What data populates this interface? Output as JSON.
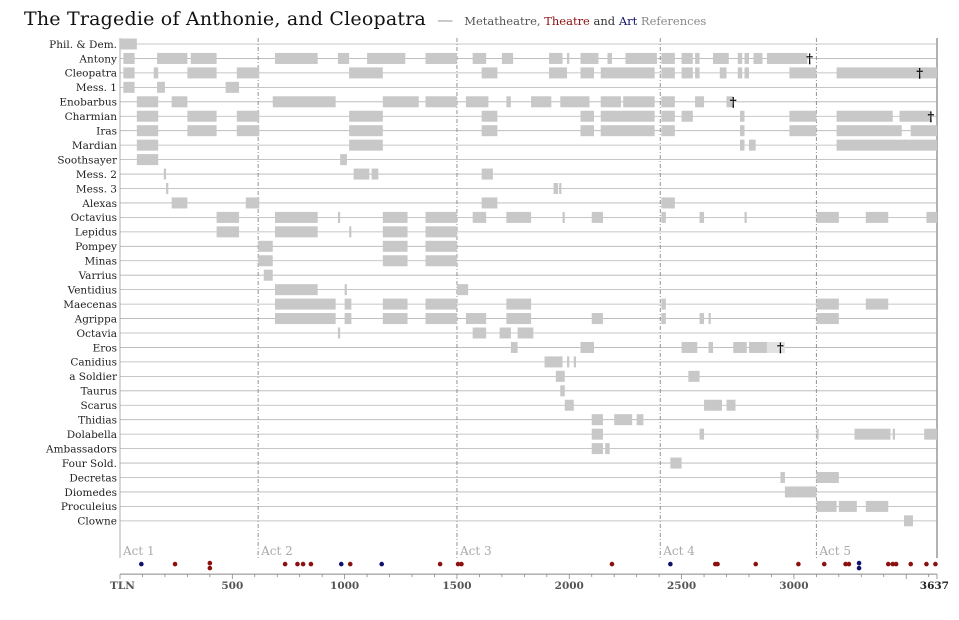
{
  "header": {
    "title": "The Tragedie of Anthonie, and Cleopatra",
    "dash": "—",
    "subtitle_metatheatre": "Metatheatre,",
    "subtitle_theatre": "Theatre",
    "subtitle_and": "and",
    "subtitle_art": "Art",
    "subtitle_references": "References"
  },
  "colors": {
    "bar": "#c8c8c8",
    "bar_light": "#e2e2e2",
    "row_line": "#b4b4b4",
    "act_line": "#888888",
    "theatre": "#8b1010",
    "art": "#10106e"
  },
  "chart_data": {
    "type": "timeline",
    "xlim": [
      0,
      3637
    ],
    "x_unit": "TLN",
    "x_ticks": [
      500,
      1000,
      1500,
      2000,
      2500,
      3000
    ],
    "x_start_label": "TLN",
    "x_end_label": "3637",
    "acts": [
      {
        "label": "Act 1",
        "start": 0
      },
      {
        "label": "Act 2",
        "start": 615
      },
      {
        "label": "Act 3",
        "start": 1500
      },
      {
        "label": "Act 4",
        "start": 2405
      },
      {
        "label": "Act 5",
        "start": 3100
      }
    ],
    "characters": [
      {
        "name": "Phil. & Dem.",
        "spans": [
          [
            0,
            75
          ]
        ]
      },
      {
        "name": "Antony",
        "spans": [
          [
            15,
            65
          ],
          [
            165,
            300
          ],
          [
            315,
            430
          ],
          [
            690,
            880
          ],
          [
            970,
            1020
          ],
          [
            1100,
            1270
          ],
          [
            1360,
            1500
          ],
          [
            1570,
            1630
          ],
          [
            1700,
            1750
          ],
          [
            1910,
            1970
          ],
          [
            1990,
            2000
          ],
          [
            2050,
            2130
          ],
          [
            2170,
            2190
          ],
          [
            2250,
            2390
          ],
          [
            2410,
            2470
          ],
          [
            2500,
            2550
          ],
          [
            2560,
            2580
          ],
          [
            2640,
            2710
          ],
          [
            2750,
            2770
          ],
          [
            2780,
            2800
          ],
          [
            2820,
            2860
          ],
          [
            2880,
            3060
          ]
        ],
        "death": 3070
      },
      {
        "name": "Cleopatra",
        "spans": [
          [
            15,
            65
          ],
          [
            150,
            170
          ],
          [
            300,
            430
          ],
          [
            520,
            620
          ],
          [
            1020,
            1170
          ],
          [
            1610,
            1680
          ],
          [
            1910,
            1990
          ],
          [
            2050,
            2110
          ],
          [
            2140,
            2380
          ],
          [
            2410,
            2470
          ],
          [
            2500,
            2550
          ],
          [
            2560,
            2580
          ],
          [
            2670,
            2700
          ],
          [
            2750,
            2770
          ],
          [
            2780,
            2800
          ],
          [
            2980,
            3100
          ],
          [
            3190,
            3637
          ]
        ],
        "death": 3560
      },
      {
        "name": "Mess. 1",
        "spans": [
          [
            15,
            65
          ],
          [
            165,
            200
          ],
          [
            470,
            530
          ]
        ]
      },
      {
        "name": "Enobarbus",
        "spans": [
          [
            75,
            170
          ],
          [
            230,
            300
          ],
          [
            680,
            960
          ],
          [
            1170,
            1330
          ],
          [
            1360,
            1500
          ],
          [
            1540,
            1640
          ],
          [
            1720,
            1740
          ],
          [
            1830,
            1920
          ],
          [
            1960,
            2090
          ],
          [
            2140,
            2230
          ],
          [
            2240,
            2380
          ],
          [
            2410,
            2470
          ],
          [
            2560,
            2600
          ],
          [
            2700,
            2730
          ]
        ],
        "death": 2730
      },
      {
        "name": "Charmian",
        "spans": [
          [
            75,
            170
          ],
          [
            300,
            430
          ],
          [
            520,
            620
          ],
          [
            1020,
            1170
          ],
          [
            1610,
            1680
          ],
          [
            2050,
            2110
          ],
          [
            2140,
            2380
          ],
          [
            2410,
            2470
          ],
          [
            2500,
            2550
          ],
          [
            2760,
            2780
          ],
          [
            2980,
            3100
          ],
          [
            3190,
            3440
          ],
          [
            3470,
            3610
          ]
        ],
        "death": 3610
      },
      {
        "name": "Iras",
        "spans": [
          [
            75,
            170
          ],
          [
            300,
            430
          ],
          [
            520,
            620
          ],
          [
            1020,
            1170
          ],
          [
            1610,
            1680
          ],
          [
            2050,
            2110
          ],
          [
            2140,
            2380
          ],
          [
            2410,
            2470
          ],
          [
            2760,
            2780
          ],
          [
            2980,
            3100
          ],
          [
            3190,
            3480
          ],
          [
            3520,
            3637
          ]
        ]
      },
      {
        "name": "Mardian",
        "spans": [
          [
            75,
            170
          ],
          [
            1020,
            1170
          ],
          [
            2760,
            2780
          ],
          [
            2800,
            2830
          ],
          [
            3190,
            3637
          ]
        ]
      },
      {
        "name": "Soothsayer",
        "spans": [
          [
            75,
            170
          ],
          [
            980,
            1010
          ]
        ]
      },
      {
        "name": "Mess. 2",
        "spans": [
          [
            195,
            205
          ],
          [
            1040,
            1110
          ],
          [
            1120,
            1150
          ],
          [
            1610,
            1660
          ]
        ]
      },
      {
        "name": "Mess. 3",
        "spans": [
          [
            205,
            215
          ],
          [
            1930,
            1950
          ],
          [
            1955,
            1965
          ]
        ]
      },
      {
        "name": "Alexas",
        "spans": [
          [
            230,
            300
          ],
          [
            560,
            620
          ],
          [
            1610,
            1680
          ],
          [
            2410,
            2470
          ]
        ]
      },
      {
        "name": "Octavius",
        "spans": [
          [
            430,
            530
          ],
          [
            690,
            880
          ],
          [
            970,
            980
          ],
          [
            1170,
            1280
          ],
          [
            1360,
            1500
          ],
          [
            1570,
            1630
          ],
          [
            1720,
            1830
          ],
          [
            1970,
            1980
          ],
          [
            2100,
            2150
          ],
          [
            2410,
            2430
          ],
          [
            2580,
            2600
          ],
          [
            2780,
            2790
          ],
          [
            3100,
            3200
          ],
          [
            3320,
            3420
          ],
          [
            3590,
            3637
          ]
        ]
      },
      {
        "name": "Lepidus",
        "spans": [
          [
            430,
            530
          ],
          [
            690,
            880
          ],
          [
            1020,
            1030
          ],
          [
            1170,
            1280
          ],
          [
            1360,
            1500
          ]
        ]
      },
      {
        "name": "Pompey",
        "spans": [
          [
            615,
            680
          ],
          [
            1170,
            1280
          ],
          [
            1360,
            1500
          ]
        ]
      },
      {
        "name": "Minas",
        "spans": [
          [
            615,
            680
          ],
          [
            1170,
            1280
          ],
          [
            1360,
            1500
          ]
        ]
      },
      {
        "name": "Varrius",
        "spans": [
          [
            640,
            680
          ]
        ]
      },
      {
        "name": "Ventidius",
        "spans": [
          [
            690,
            880
          ],
          [
            1000,
            1010
          ],
          [
            1500,
            1550
          ]
        ]
      },
      {
        "name": "Maecenas",
        "spans": [
          [
            690,
            960
          ],
          [
            1000,
            1030
          ],
          [
            1170,
            1280
          ],
          [
            1360,
            1500
          ],
          [
            1720,
            1830
          ],
          [
            2410,
            2430
          ],
          [
            3100,
            3200
          ],
          [
            3320,
            3420
          ]
        ]
      },
      {
        "name": "Agrippa",
        "spans": [
          [
            690,
            960
          ],
          [
            1000,
            1030
          ],
          [
            1170,
            1280
          ],
          [
            1360,
            1500
          ],
          [
            1540,
            1630
          ],
          [
            1720,
            1830
          ],
          [
            2100,
            2150
          ],
          [
            2410,
            2430
          ],
          [
            2580,
            2600
          ],
          [
            2620,
            2630
          ],
          [
            3100,
            3200
          ]
        ]
      },
      {
        "name": "Octavia",
        "spans": [
          [
            970,
            980
          ],
          [
            1570,
            1630
          ],
          [
            1690,
            1740
          ],
          [
            1770,
            1840
          ]
        ]
      },
      {
        "name": "Eros",
        "spans": [
          [
            1740,
            1770
          ],
          [
            2050,
            2110
          ],
          [
            2500,
            2570
          ],
          [
            2620,
            2640
          ],
          [
            2730,
            2790
          ],
          [
            2800,
            2880
          ],
          [
            2880,
            2960
          ]
        ],
        "light_spans": [
          [
            2880,
            2960
          ]
        ],
        "death": 2940
      },
      {
        "name": "Canidius",
        "spans": [
          [
            1890,
            1970
          ],
          [
            1990,
            2000
          ],
          [
            2020,
            2030
          ]
        ]
      },
      {
        "name": "a Soldier",
        "spans": [
          [
            1940,
            1980
          ],
          [
            2530,
            2580
          ]
        ]
      },
      {
        "name": "Taurus",
        "spans": [
          [
            1960,
            1980
          ]
        ]
      },
      {
        "name": "Scarus",
        "spans": [
          [
            1980,
            2020
          ],
          [
            2600,
            2680
          ],
          [
            2700,
            2740
          ]
        ]
      },
      {
        "name": "Thidias",
        "spans": [
          [
            2100,
            2150
          ],
          [
            2200,
            2280
          ],
          [
            2300,
            2330
          ]
        ]
      },
      {
        "name": "Dolabella",
        "spans": [
          [
            2100,
            2150
          ],
          [
            2580,
            2600
          ],
          [
            3100,
            3110
          ],
          [
            3270,
            3430
          ],
          [
            3440,
            3450
          ],
          [
            3580,
            3637
          ]
        ]
      },
      {
        "name": "Ambassadors",
        "spans": [
          [
            2100,
            2150
          ],
          [
            2160,
            2180
          ]
        ]
      },
      {
        "name": "Four Sold.",
        "spans": [
          [
            2450,
            2500
          ]
        ]
      },
      {
        "name": "Decretas",
        "spans": [
          [
            2940,
            2960
          ],
          [
            3100,
            3200
          ]
        ]
      },
      {
        "name": "Diomedes",
        "spans": [
          [
            2960,
            3000
          ],
          [
            3000,
            3100
          ]
        ]
      },
      {
        "name": "Proculeius",
        "spans": [
          [
            3100,
            3190
          ],
          [
            3200,
            3280
          ],
          [
            3320,
            3420
          ]
        ]
      },
      {
        "name": "Clowne",
        "spans": [
          [
            3490,
            3530
          ]
        ]
      }
    ],
    "references": [
      {
        "tln": 95,
        "kind": "art"
      },
      {
        "tln": 245,
        "kind": "theatre"
      },
      {
        "tln": 400,
        "kind": "theatre",
        "lane": 0
      },
      {
        "tln": 400,
        "kind": "theatre",
        "lane": 1
      },
      {
        "tln": 735,
        "kind": "theatre"
      },
      {
        "tln": 790,
        "kind": "theatre"
      },
      {
        "tln": 815,
        "kind": "theatre"
      },
      {
        "tln": 850,
        "kind": "theatre"
      },
      {
        "tln": 985,
        "kind": "art"
      },
      {
        "tln": 1025,
        "kind": "theatre"
      },
      {
        "tln": 1165,
        "kind": "art"
      },
      {
        "tln": 1425,
        "kind": "theatre"
      },
      {
        "tln": 1505,
        "kind": "theatre"
      },
      {
        "tln": 1520,
        "kind": "theatre"
      },
      {
        "tln": 2190,
        "kind": "theatre"
      },
      {
        "tln": 2450,
        "kind": "art"
      },
      {
        "tln": 2650,
        "kind": "theatre"
      },
      {
        "tln": 2660,
        "kind": "theatre"
      },
      {
        "tln": 2830,
        "kind": "theatre"
      },
      {
        "tln": 3020,
        "kind": "theatre"
      },
      {
        "tln": 3135,
        "kind": "theatre"
      },
      {
        "tln": 3230,
        "kind": "theatre"
      },
      {
        "tln": 3245,
        "kind": "theatre"
      },
      {
        "tln": 3290,
        "kind": "art",
        "lane": 0
      },
      {
        "tln": 3290,
        "kind": "art",
        "lane": 1
      },
      {
        "tln": 3420,
        "kind": "theatre"
      },
      {
        "tln": 3440,
        "kind": "theatre"
      },
      {
        "tln": 3455,
        "kind": "theatre"
      },
      {
        "tln": 3520,
        "kind": "theatre"
      },
      {
        "tln": 3590,
        "kind": "theatre"
      },
      {
        "tln": 3630,
        "kind": "theatre"
      }
    ]
  }
}
